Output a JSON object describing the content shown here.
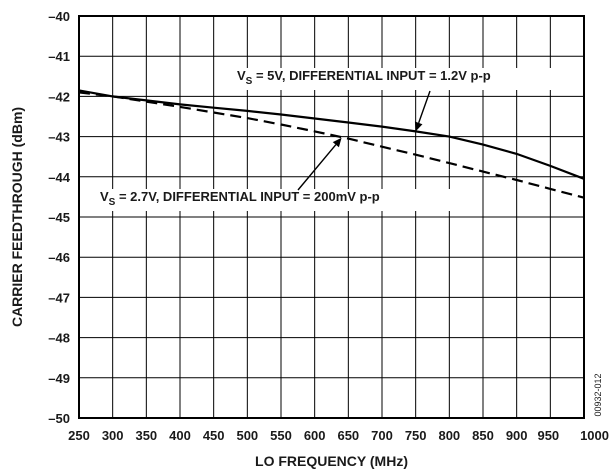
{
  "chart_data": {
    "type": "line",
    "title": "",
    "xlabel": "LO FREQUENCY (MHz)",
    "ylabel": "CARRIER FEEDTHROUGH (dBm)",
    "xlim": [
      250,
      1000
    ],
    "ylim": [
      -50,
      -40
    ],
    "x_ticks": [
      250,
      300,
      350,
      400,
      450,
      500,
      550,
      600,
      650,
      700,
      750,
      800,
      850,
      900,
      950,
      1000
    ],
    "y_ticks": [
      -40,
      -41,
      -42,
      -43,
      -44,
      -45,
      -46,
      -47,
      -48,
      -49,
      -50
    ],
    "y_tick_labels": [
      "–40",
      "–41",
      "–42",
      "–43",
      "–44",
      "–45",
      "–46",
      "–47",
      "–48",
      "–49",
      "–50"
    ],
    "grid": true,
    "series": [
      {
        "style": "solid",
        "color": "#000000",
        "x": [
          250,
          300,
          350,
          400,
          450,
          500,
          550,
          600,
          650,
          700,
          750,
          800,
          850,
          900,
          950,
          1000
        ],
        "y": [
          -41.85,
          -42.0,
          -42.1,
          -42.2,
          -42.28,
          -42.36,
          -42.45,
          -42.55,
          -42.65,
          -42.75,
          -42.87,
          -43.0,
          -43.2,
          -43.43,
          -43.73,
          -44.05
        ]
      },
      {
        "style": "dashed",
        "color": "#000000",
        "x": [
          250,
          300,
          350,
          400,
          450,
          500,
          550,
          600,
          650,
          700,
          750,
          800,
          850,
          900,
          950,
          1000
        ],
        "y": [
          -41.9,
          -42.0,
          -42.13,
          -42.26,
          -42.4,
          -42.54,
          -42.7,
          -42.87,
          -43.05,
          -43.25,
          -43.45,
          -43.66,
          -43.87,
          -44.08,
          -44.3,
          -44.52
        ]
      }
    ],
    "annotations": [
      {
        "prefix": "V",
        "sub": "S",
        "text": " = 5V, DIFFERENTIAL INPUT = 1.2V p-p",
        "arrow_to": [
          750,
          -42.87
        ]
      },
      {
        "prefix": "V",
        "sub": "S",
        "text": " = 2.7V, DIFFERENTIAL INPUT = 200mV p-p",
        "arrow_to": [
          640,
          -43.03
        ]
      }
    ],
    "figure_id": "00932-012"
  }
}
